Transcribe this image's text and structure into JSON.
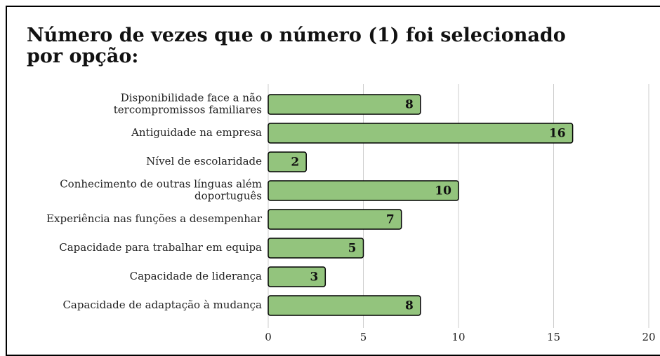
{
  "chart_data": {
    "type": "bar",
    "orientation": "horizontal",
    "title": "Número de vezes que o número (1) foi selecionado por opção:",
    "categories": [
      "Disponibilidade face a não\ntercompromissos familiares",
      "Antiguidade na empresa",
      "Nível de escolaridade",
      "Conhecimento de outras línguas além\ndoportuguês",
      "Experiência nas funções a desempenhar",
      "Capacidade para trabalhar em equipa",
      "Capacidade de liderança",
      "Capacidade de adaptação à mudança"
    ],
    "values": [
      8,
      16,
      2,
      10,
      7,
      5,
      3,
      8
    ],
    "color": "#93c47d",
    "xlim": [
      0,
      20
    ],
    "xticks": [
      0,
      5,
      10,
      15,
      20
    ],
    "grid": true
  }
}
